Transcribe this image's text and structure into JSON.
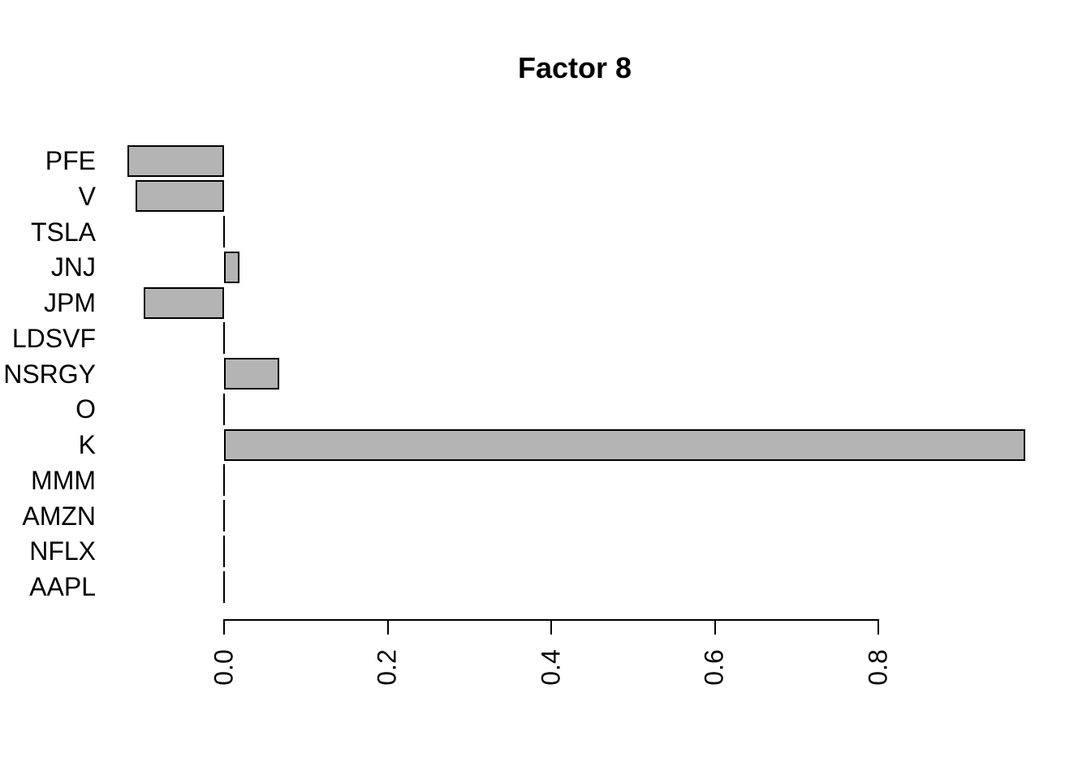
{
  "chart_data": {
    "type": "bar",
    "orientation": "horizontal",
    "title": "Factor 8",
    "categories": [
      "PFE",
      "V",
      "TSLA",
      "JNJ",
      "JPM",
      "LDSVF",
      "NSRGY",
      "O",
      "K",
      "MMM",
      "AMZN",
      "NFLX",
      "AAPL"
    ],
    "values": [
      -0.118,
      -0.108,
      0,
      0.019,
      -0.098,
      0,
      0.067,
      0,
      0.98,
      0,
      0,
      0,
      0
    ],
    "x_tick_values": [
      0.0,
      0.2,
      0.4,
      0.6,
      0.8
    ],
    "x_tick_labels": [
      "0.0",
      "0.2",
      "0.4",
      "0.6",
      "0.8"
    ],
    "xlim": [
      0,
      0.8
    ],
    "xlabel": "",
    "ylabel": "",
    "grid": false,
    "legend": "none",
    "colors": {
      "bar_fill": "#b4b4b4",
      "bar_border": "#000000",
      "axis": "#000000",
      "text": "#000000",
      "background": "#ffffff"
    }
  }
}
